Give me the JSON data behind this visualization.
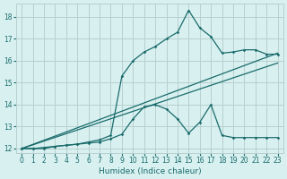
{
  "title": "",
  "xlabel": "Humidex (Indice chaleur)",
  "ylabel": "",
  "bg_color": "#d8f0f0",
  "grid_color": "#b8d0d0",
  "line_color": "#1a6b6b",
  "xlim": [
    -0.5,
    23.5
  ],
  "ylim": [
    11.8,
    18.6
  ],
  "xticks": [
    0,
    1,
    2,
    3,
    4,
    5,
    6,
    7,
    8,
    9,
    10,
    11,
    12,
    13,
    14,
    15,
    16,
    17,
    18,
    19,
    20,
    21,
    22,
    23
  ],
  "yticks": [
    12,
    13,
    14,
    15,
    16,
    17,
    18
  ],
  "series_upper": {
    "x": [
      0,
      1,
      2,
      3,
      4,
      5,
      6,
      7,
      8,
      9,
      10,
      11,
      12,
      13,
      14,
      15,
      16,
      17,
      18,
      19,
      20,
      21,
      22,
      23
    ],
    "y": [
      12.0,
      12.0,
      12.0,
      12.1,
      12.15,
      12.2,
      12.3,
      12.4,
      12.6,
      15.3,
      16.0,
      16.4,
      16.65,
      17.0,
      17.3,
      18.3,
      17.5,
      17.1,
      16.35,
      16.4,
      16.5,
      16.5,
      16.3,
      16.3
    ]
  },
  "series_lower": {
    "x": [
      0,
      1,
      2,
      3,
      4,
      5,
      6,
      7,
      8,
      9,
      10,
      11,
      12,
      13,
      14,
      15,
      16,
      17,
      18,
      19,
      20,
      21,
      22,
      23
    ],
    "y": [
      12.0,
      12.0,
      12.05,
      12.1,
      12.15,
      12.2,
      12.25,
      12.3,
      12.45,
      12.65,
      13.35,
      13.9,
      14.0,
      13.8,
      13.35,
      12.7,
      13.2,
      14.0,
      12.6,
      12.5,
      12.5,
      12.5,
      12.5,
      12.5
    ]
  },
  "line_upper": {
    "x": [
      0,
      23
    ],
    "y": [
      12.0,
      16.35
    ]
  },
  "line_lower": {
    "x": [
      0,
      23
    ],
    "y": [
      12.0,
      15.9
    ]
  }
}
